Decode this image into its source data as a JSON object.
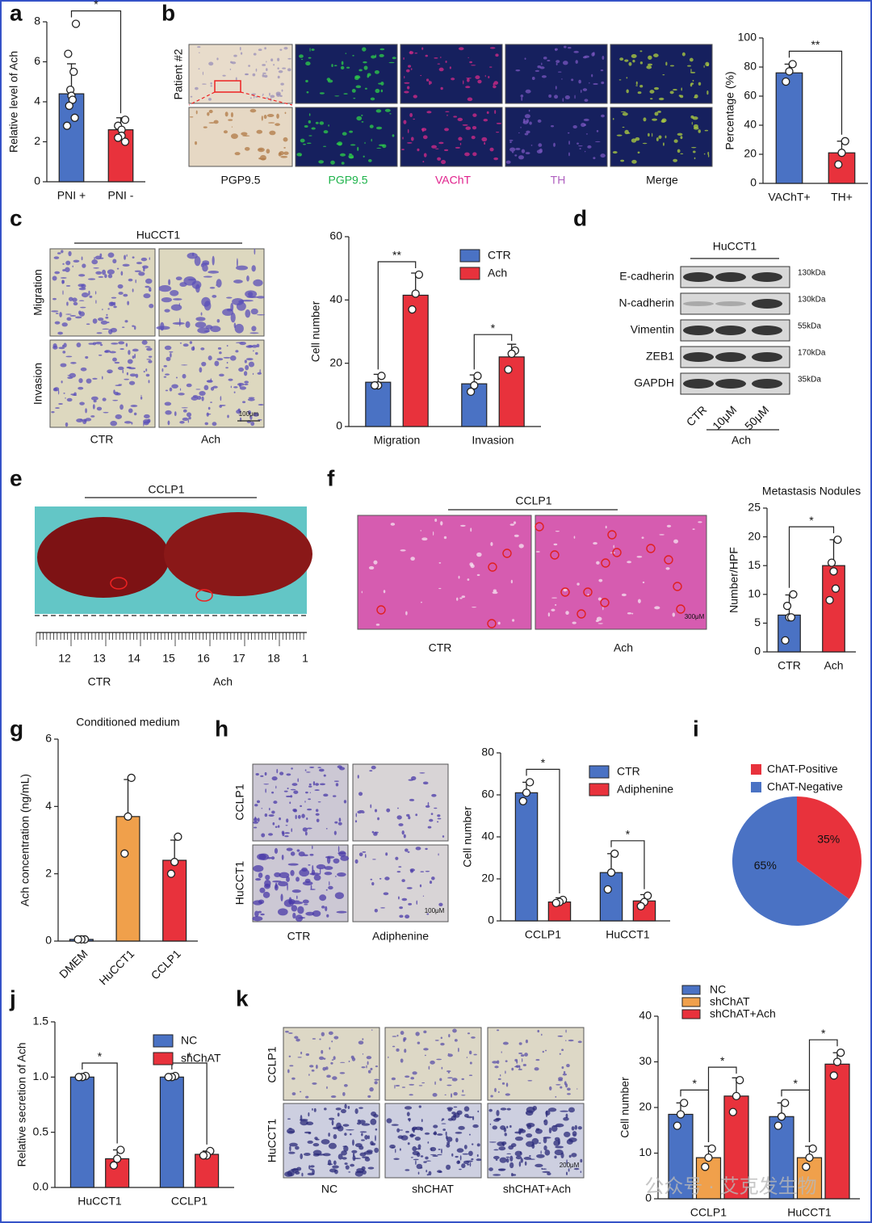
{
  "panel_letters": [
    "a",
    "b",
    "c",
    "d",
    "e",
    "f",
    "g",
    "h",
    "i",
    "j",
    "k"
  ],
  "panel_b": {
    "row_label": "Patient #2",
    "columns": [
      "PGP9.5",
      "PGP9.5",
      "VAChT",
      "TH",
      "Merge"
    ]
  },
  "panel_c": {
    "title": "HuCCT1",
    "rows": [
      "Migration",
      "Invasion"
    ],
    "columns": [
      "CTR",
      "Ach"
    ],
    "scale": "100μm"
  },
  "panel_d": {
    "title": "HuCCT1",
    "proteins": [
      "E-cadherin",
      "N-cadherin",
      "Vimentin",
      "ZEB1",
      "GAPDH"
    ],
    "sizes": [
      "130kDa",
      "130kDa",
      "55kDa",
      "170kDa",
      "35kDa"
    ],
    "lanes": [
      "CTR",
      "10μM",
      "50μM"
    ],
    "group": "Ach"
  },
  "panel_e": {
    "title": "CCLP1",
    "ruler": [
      "12",
      "13",
      "14",
      "15",
      "16",
      "17",
      "18",
      "1"
    ],
    "columns": [
      "CTR",
      "Ach"
    ]
  },
  "panel_f": {
    "title": "CCLP1",
    "columns": [
      "CTR",
      "Ach"
    ],
    "scale": "300μM"
  },
  "panel_h": {
    "rows": [
      "CCLP1",
      "HuCCT1"
    ],
    "columns": [
      "CTR",
      "Adiphenine"
    ],
    "scale": "100μM"
  },
  "panel_k": {
    "rows": [
      "CCLP1",
      "HuCCT1"
    ],
    "columns": [
      "NC",
      "shCHAT",
      "shCHAT+Ach"
    ],
    "scale": "200μM"
  },
  "watermark": "公众号 · 艾克发生物",
  "chart_data": [
    {
      "type": "bar",
      "y_label": "Relative level of Ach",
      "categories": [
        "PNI +",
        "PNI -"
      ],
      "values": [
        4.4,
        2.6
      ],
      "errors": [
        1.5,
        0.6
      ],
      "points": [
        [
          7.9,
          6.4,
          5.5,
          4.6,
          4.3,
          4.1,
          3.8,
          3.2,
          2.8
        ],
        [
          3.1,
          2.8,
          2.6,
          2.3,
          2.2,
          2.0
        ]
      ],
      "colors": [
        "#4a72c4",
        "#e8323c"
      ],
      "ylim": [
        0,
        8
      ],
      "yticks": [
        0,
        2,
        4,
        6,
        8
      ],
      "significance": "*"
    },
    {
      "type": "bar",
      "y_label": "Percentage (%)",
      "categories": [
        "VAChT+",
        "TH+"
      ],
      "values": [
        76,
        21
      ],
      "errors": [
        6,
        8
      ],
      "points": [
        [
          82,
          77,
          70
        ],
        [
          29,
          21,
          13
        ]
      ],
      "colors": [
        "#4a72c4",
        "#e8323c"
      ],
      "ylim": [
        0,
        100
      ],
      "yticks": [
        0,
        20,
        40,
        60,
        80,
        100
      ],
      "significance": "**"
    },
    {
      "type": "bar",
      "y_label": "Cell number",
      "categories": [
        "Migration",
        "Invasion"
      ],
      "series": [
        {
          "name": "CTR",
          "color": "#4a72c4",
          "values": [
            14,
            13.5
          ],
          "errors": [
            2.5,
            2.8
          ],
          "points": [
            [
              16,
              13,
              13
            ],
            [
              16,
              13,
              11
            ]
          ]
        },
        {
          "name": "Ach",
          "color": "#e8323c",
          "values": [
            41.5,
            22
          ],
          "errors": [
            7,
            4
          ],
          "points": [
            [
              48,
              42,
              37
            ],
            [
              24,
              23,
              18
            ]
          ]
        }
      ],
      "ylim": [
        0,
        60
      ],
      "yticks": [
        0,
        20,
        40,
        60
      ],
      "significance": [
        [
          "**"
        ],
        [
          "*"
        ]
      ],
      "legend": "upper right"
    },
    {
      "type": "bar",
      "title": "Metastasis Nodules",
      "y_label": "Number/HPF",
      "categories": [
        "CTR",
        "Ach"
      ],
      "values": [
        6.4,
        15
      ],
      "errors": [
        3.5,
        4.5
      ],
      "points": [
        [
          10,
          8,
          6,
          6,
          2
        ],
        [
          19.5,
          15.5,
          14,
          11,
          9
        ]
      ],
      "colors": [
        "#4a72c4",
        "#e8323c"
      ],
      "ylim": [
        0,
        25
      ],
      "yticks": [
        0,
        5,
        10,
        15,
        20,
        25
      ],
      "significance": "*"
    },
    {
      "type": "bar",
      "title": "Conditioned medium",
      "y_label": "Ach concentration (ng/mL)",
      "categories": [
        "DMEM",
        "HuCCT1",
        "CCLP1"
      ],
      "values": [
        0.05,
        3.7,
        2.4
      ],
      "errors": [
        0.02,
        1.1,
        0.6
      ],
      "points": [
        [
          0.05,
          0.05,
          0.05
        ],
        [
          4.85,
          3.7,
          2.6
        ],
        [
          3.1,
          2.35,
          2.0
        ]
      ],
      "colors": [
        "#4a72c4",
        "#f0a04b",
        "#e8323c"
      ],
      "ylim": [
        0,
        6
      ],
      "yticks": [
        0,
        2,
        4,
        6
      ],
      "xtick_rotation": -45
    },
    {
      "type": "bar",
      "y_label": "Cell number",
      "categories": [
        "CCLP1",
        "HuCCT1"
      ],
      "series": [
        {
          "name": "CTR",
          "color": "#4a72c4",
          "values": [
            61,
            23
          ],
          "errors": [
            5,
            9
          ],
          "points": [
            [
              66,
              61,
              57
            ],
            [
              32,
              23,
              15
            ]
          ]
        },
        {
          "name": "Adiphenine",
          "color": "#e8323c",
          "values": [
            9,
            9.5
          ],
          "errors": [
            2,
            3
          ],
          "points": [
            [
              10,
              9,
              8.5
            ],
            [
              12,
              9,
              7
            ]
          ]
        }
      ],
      "ylim": [
        0,
        80
      ],
      "yticks": [
        0,
        20,
        40,
        60,
        80
      ],
      "significance": [
        [
          "*"
        ],
        [
          "*"
        ]
      ],
      "legend": "upper right"
    },
    {
      "type": "pie",
      "categories": [
        "ChAT-Positive",
        "ChAT-Negative"
      ],
      "values": [
        35,
        65
      ],
      "value_labels": [
        "35%",
        "65%"
      ],
      "colors": [
        "#e8323c",
        "#4a72c4"
      ]
    },
    {
      "type": "bar",
      "y_label": "Relative secretion of Ach",
      "categories": [
        "HuCCT1",
        "CCLP1"
      ],
      "series": [
        {
          "name": "NC",
          "color": "#4a72c4",
          "values": [
            1.0,
            1.0
          ],
          "errors": [
            0.02,
            0.02
          ],
          "points": [
            [
              1.01,
              1.0,
              1.0
            ],
            [
              1.01,
              1.0,
              1.0
            ]
          ]
        },
        {
          "name": "shChAT",
          "color": "#e8323c",
          "values": [
            0.26,
            0.3
          ],
          "errors": [
            0.08,
            0.03
          ],
          "points": [
            [
              0.34,
              0.26,
              0.2
            ],
            [
              0.33,
              0.29,
              0.29
            ]
          ]
        }
      ],
      "ylim": [
        0,
        1.5
      ],
      "yticks": [
        {
          "value": 0,
          "label": "0.0"
        },
        0.5,
        {
          "value": 1,
          "label": "1.0"
        },
        1.5
      ],
      "significance": [
        [
          "*"
        ],
        [
          "*"
        ]
      ],
      "legend": "upper right"
    },
    {
      "type": "bar",
      "y_label": "Cell number",
      "categories": [
        "CCLP1",
        "HuCCT1"
      ],
      "series": [
        {
          "name": "NC",
          "color": "#4a72c4",
          "values": [
            18.5,
            18
          ],
          "errors": [
            2.5,
            3
          ],
          "points": [
            [
              21,
              18.5,
              16
            ],
            [
              21,
              18,
              16
            ]
          ]
        },
        {
          "name": "shChAT",
          "color": "#f0a04b",
          "values": [
            9,
            9
          ],
          "errors": [
            2.5,
            2.5
          ],
          "points": [
            [
              11,
              9,
              7
            ],
            [
              11,
              9,
              7
            ]
          ]
        },
        {
          "name": "shChAT+Ach",
          "color": "#e8323c",
          "values": [
            22.5,
            29.5
          ],
          "errors": [
            4,
            2.5
          ],
          "points": [
            [
              26,
              22.5,
              19
            ],
            [
              32,
              30,
              27
            ]
          ]
        }
      ],
      "ylim": [
        0,
        40
      ],
      "yticks": [
        0,
        10,
        20,
        30,
        40
      ],
      "significance": [
        [
          "*",
          "*"
        ],
        [
          "*",
          "*"
        ]
      ],
      "legend": "top"
    }
  ]
}
